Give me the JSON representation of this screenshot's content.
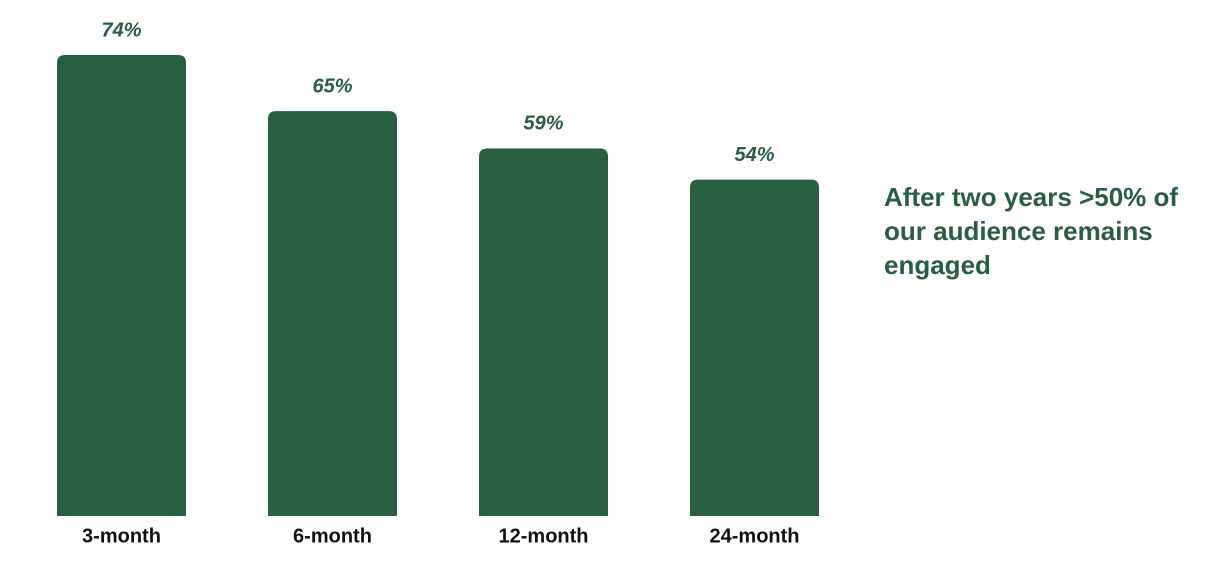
{
  "chart_data": {
    "type": "bar",
    "categories": [
      "3-month",
      "6-month",
      "12-month",
      "24-month"
    ],
    "values": [
      74,
      65,
      59,
      54
    ],
    "value_labels": [
      "74%",
      "65%",
      "59%",
      "54%"
    ],
    "color": "#285f40",
    "annotation": "After two years >50% of our audience remains engaged"
  }
}
